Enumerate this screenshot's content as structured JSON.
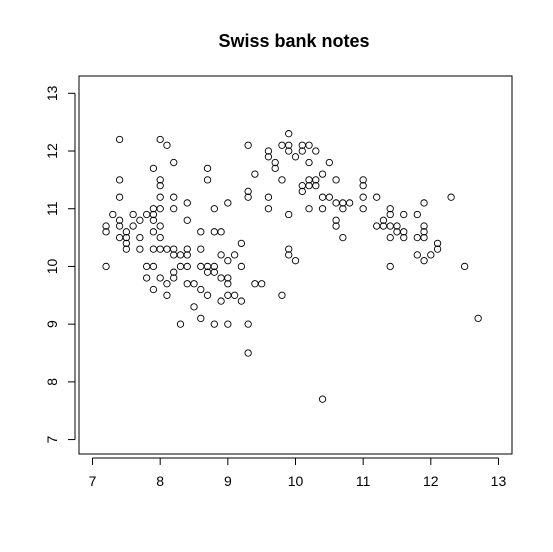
{
  "chart_data": {
    "type": "scatter",
    "title": "Swiss bank notes",
    "xlabel": "",
    "ylabel": "",
    "xlim": [
      6.8,
      13.2
    ],
    "ylim": [
      6.75,
      13.3
    ],
    "x_ticks": [
      7,
      8,
      9,
      10,
      11,
      12,
      13
    ],
    "y_ticks": [
      7,
      8,
      9,
      10,
      11,
      12,
      13
    ],
    "grid": false,
    "legend": "none",
    "point_color": "#000000",
    "marker": "open-circle",
    "points": [
      [
        7.2,
        10.7
      ],
      [
        7.2,
        10.6
      ],
      [
        7.2,
        10.0
      ],
      [
        7.3,
        10.9
      ],
      [
        7.4,
        12.2
      ],
      [
        7.4,
        11.5
      ],
      [
        7.4,
        11.2
      ],
      [
        7.4,
        10.8
      ],
      [
        7.4,
        10.7
      ],
      [
        7.4,
        10.5
      ],
      [
        7.5,
        10.6
      ],
      [
        7.5,
        10.5
      ],
      [
        7.5,
        10.4
      ],
      [
        7.5,
        10.3
      ],
      [
        7.6,
        10.9
      ],
      [
        7.6,
        10.7
      ],
      [
        7.7,
        10.8
      ],
      [
        7.7,
        10.5
      ],
      [
        7.7,
        10.3
      ],
      [
        7.8,
        10.9
      ],
      [
        7.8,
        10.0
      ],
      [
        7.8,
        9.8
      ],
      [
        7.9,
        11.7
      ],
      [
        7.9,
        11.0
      ],
      [
        7.9,
        10.9
      ],
      [
        7.9,
        10.8
      ],
      [
        7.9,
        10.6
      ],
      [
        7.9,
        10.3
      ],
      [
        7.9,
        10.0
      ],
      [
        7.9,
        9.6
      ],
      [
        8.0,
        12.2
      ],
      [
        8.0,
        11.5
      ],
      [
        8.0,
        11.4
      ],
      [
        8.0,
        11.2
      ],
      [
        8.0,
        11.0
      ],
      [
        8.0,
        10.7
      ],
      [
        8.0,
        10.5
      ],
      [
        8.0,
        10.3
      ],
      [
        8.0,
        9.8
      ],
      [
        8.1,
        12.1
      ],
      [
        8.1,
        10.3
      ],
      [
        8.1,
        9.7
      ],
      [
        8.1,
        9.5
      ],
      [
        8.2,
        11.8
      ],
      [
        8.2,
        11.2
      ],
      [
        8.2,
        11.0
      ],
      [
        8.2,
        10.3
      ],
      [
        8.2,
        10.2
      ],
      [
        8.2,
        9.9
      ],
      [
        8.2,
        9.8
      ],
      [
        8.3,
        10.2
      ],
      [
        8.3,
        10.0
      ],
      [
        8.3,
        9.0
      ],
      [
        8.4,
        11.1
      ],
      [
        8.4,
        10.8
      ],
      [
        8.4,
        10.3
      ],
      [
        8.4,
        10.2
      ],
      [
        8.4,
        10.0
      ],
      [
        8.4,
        9.7
      ],
      [
        8.5,
        9.7
      ],
      [
        8.5,
        9.3
      ],
      [
        8.6,
        10.6
      ],
      [
        8.6,
        10.3
      ],
      [
        8.6,
        10.0
      ],
      [
        8.6,
        9.6
      ],
      [
        8.6,
        9.1
      ],
      [
        8.7,
        11.7
      ],
      [
        8.7,
        11.5
      ],
      [
        8.7,
        10.0
      ],
      [
        8.7,
        9.9
      ],
      [
        8.7,
        9.5
      ],
      [
        8.8,
        11.0
      ],
      [
        8.8,
        10.6
      ],
      [
        8.8,
        10.0
      ],
      [
        8.8,
        9.9
      ],
      [
        8.8,
        9.0
      ],
      [
        8.9,
        10.6
      ],
      [
        8.9,
        10.2
      ],
      [
        8.9,
        9.8
      ],
      [
        8.9,
        9.4
      ],
      [
        9.0,
        11.1
      ],
      [
        9.0,
        10.1
      ],
      [
        9.0,
        9.8
      ],
      [
        9.0,
        9.7
      ],
      [
        9.0,
        9.5
      ],
      [
        9.0,
        9.0
      ],
      [
        9.1,
        10.2
      ],
      [
        9.1,
        9.5
      ],
      [
        9.2,
        10.4
      ],
      [
        9.2,
        10.0
      ],
      [
        9.2,
        9.4
      ],
      [
        9.3,
        12.1
      ],
      [
        9.3,
        11.3
      ],
      [
        9.3,
        11.2
      ],
      [
        9.3,
        9.0
      ],
      [
        9.3,
        8.5
      ],
      [
        9.4,
        11.6
      ],
      [
        9.4,
        9.7
      ],
      [
        9.5,
        9.7
      ],
      [
        9.6,
        12.0
      ],
      [
        9.6,
        11.9
      ],
      [
        9.6,
        11.2
      ],
      [
        9.6,
        11.0
      ],
      [
        9.7,
        11.8
      ],
      [
        9.7,
        11.7
      ],
      [
        9.8,
        12.1
      ],
      [
        9.8,
        11.5
      ],
      [
        9.8,
        9.5
      ],
      [
        9.9,
        12.3
      ],
      [
        9.9,
        12.1
      ],
      [
        9.9,
        12.0
      ],
      [
        9.9,
        10.9
      ],
      [
        9.9,
        10.3
      ],
      [
        9.9,
        10.2
      ],
      [
        10.0,
        11.9
      ],
      [
        10.0,
        10.1
      ],
      [
        10.1,
        12.1
      ],
      [
        10.1,
        12.0
      ],
      [
        10.1,
        11.4
      ],
      [
        10.1,
        11.3
      ],
      [
        10.2,
        12.1
      ],
      [
        10.2,
        11.8
      ],
      [
        10.2,
        11.5
      ],
      [
        10.2,
        11.4
      ],
      [
        10.2,
        11.0
      ],
      [
        10.3,
        12.0
      ],
      [
        10.3,
        11.5
      ],
      [
        10.3,
        11.4
      ],
      [
        10.4,
        11.6
      ],
      [
        10.4,
        11.2
      ],
      [
        10.4,
        11.0
      ],
      [
        10.4,
        7.7
      ],
      [
        10.5,
        11.8
      ],
      [
        10.5,
        11.2
      ],
      [
        10.6,
        11.5
      ],
      [
        10.6,
        11.1
      ],
      [
        10.6,
        10.8
      ],
      [
        10.6,
        10.7
      ],
      [
        10.7,
        11.1
      ],
      [
        10.7,
        11.0
      ],
      [
        10.7,
        10.5
      ],
      [
        10.8,
        11.1
      ],
      [
        11.0,
        11.5
      ],
      [
        11.0,
        11.4
      ],
      [
        11.0,
        11.2
      ],
      [
        11.0,
        11.0
      ],
      [
        11.2,
        11.2
      ],
      [
        11.2,
        10.7
      ],
      [
        11.3,
        10.8
      ],
      [
        11.3,
        10.7
      ],
      [
        11.4,
        11.0
      ],
      [
        11.4,
        10.9
      ],
      [
        11.4,
        10.7
      ],
      [
        11.4,
        10.5
      ],
      [
        11.4,
        10.0
      ],
      [
        11.5,
        10.7
      ],
      [
        11.5,
        10.6
      ],
      [
        11.6,
        10.9
      ],
      [
        11.6,
        10.6
      ],
      [
        11.6,
        10.5
      ],
      [
        11.8,
        10.9
      ],
      [
        11.8,
        10.5
      ],
      [
        11.8,
        10.2
      ],
      [
        11.9,
        11.1
      ],
      [
        11.9,
        10.7
      ],
      [
        11.9,
        10.6
      ],
      [
        11.9,
        10.5
      ],
      [
        11.9,
        10.1
      ],
      [
        12.0,
        10.2
      ],
      [
        12.1,
        10.4
      ],
      [
        12.1,
        10.3
      ],
      [
        12.3,
        11.2
      ],
      [
        12.5,
        10.0
      ],
      [
        12.7,
        9.1
      ]
    ]
  }
}
